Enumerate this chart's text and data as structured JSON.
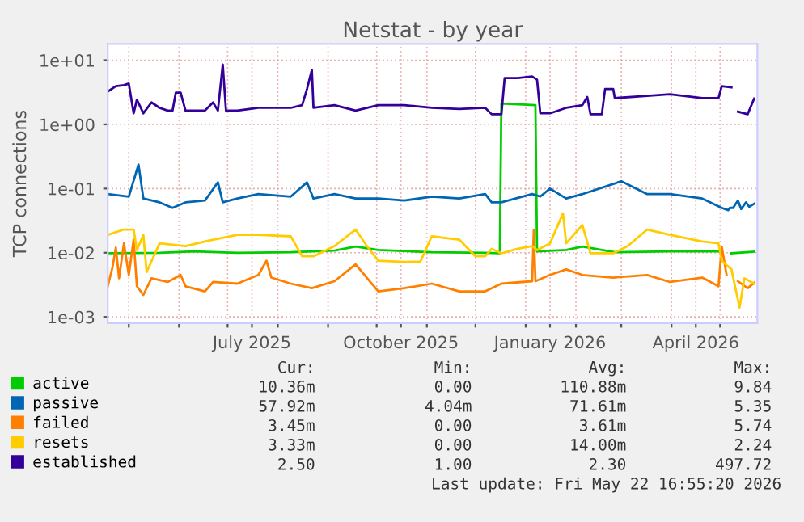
{
  "chart_data": {
    "type": "line",
    "title": "Netstat - by year",
    "ylabel": "TCP connections",
    "log": "y",
    "grid": true,
    "legend": "bottom",
    "marker": "none",
    "line_style": "solid",
    "xlim": [
      "2025-04-18",
      "2026-05-24"
    ],
    "xticks": [
      {
        "value": "2025-05-01",
        "label": null
      },
      {
        "value": "2025-06-01",
        "label": null
      },
      {
        "value": "2025-07-01",
        "label": null
      },
      {
        "value": "2025-07-16",
        "label": "July 2025"
      },
      {
        "value": "2025-08-01",
        "label": null
      },
      {
        "value": "2025-09-01",
        "label": null
      },
      {
        "value": "2025-10-01",
        "label": null
      },
      {
        "value": "2025-10-16",
        "label": "October 2025"
      },
      {
        "value": "2025-11-01",
        "label": null
      },
      {
        "value": "2025-12-01",
        "label": null
      },
      {
        "value": "2026-01-01",
        "label": null
      },
      {
        "value": "2026-01-16",
        "label": "January 2026"
      },
      {
        "value": "2026-02-01",
        "label": null
      },
      {
        "value": "2026-03-01",
        "label": null
      },
      {
        "value": "2026-04-01",
        "label": null
      },
      {
        "value": "2026-04-16",
        "label": "April 2026"
      },
      {
        "value": "2026-05-01",
        "label": null
      }
    ],
    "ylim": [
      0.0008,
      18
    ],
    "yticks": [
      {
        "value": 0.001,
        "label": "1e-03"
      },
      {
        "value": 0.01,
        "label": "1e-02"
      },
      {
        "value": 0.1,
        "label": "1e-01"
      },
      {
        "value": 1,
        "label": "1e+00"
      },
      {
        "value": 10,
        "label": "1e+01"
      }
    ],
    "series": [
      {
        "name": "active",
        "color": "#00cc00",
        "x": [
          "2025-04-18",
          "2025-05-20",
          "2025-06-10",
          "2025-07-07",
          "2025-08-09",
          "2025-09-05",
          "2025-09-18",
          "2025-10-02",
          "2025-11-04",
          "2025-12-07",
          "2025-12-16",
          "2025-12-17",
          "2026-01-07",
          "2026-01-08",
          "2026-01-26",
          "2026-02-05",
          "2026-02-25",
          "2026-03-31",
          "2026-04-30",
          "2026-05-02",
          "2026-05-08",
          "2026-05-22"
        ],
        "values": [
          0.0098,
          0.01,
          0.0105,
          0.01,
          0.0102,
          0.0108,
          0.0125,
          0.011,
          0.0102,
          0.01,
          0.0098,
          2.12,
          2.0,
          0.0105,
          0.011,
          0.0125,
          0.0102,
          0.0105,
          0.0105,
          null,
          0.0098,
          0.0104
        ]
      },
      {
        "name": "passive",
        "color": "#0066b3",
        "x": [
          "2025-04-18",
          "2025-05-01",
          "2025-05-07",
          "2025-05-10",
          "2025-05-20",
          "2025-05-28",
          "2025-06-05",
          "2025-06-17",
          "2025-06-25",
          "2025-06-28",
          "2025-07-07",
          "2025-07-20",
          "2025-08-09",
          "2025-08-19",
          "2025-08-23",
          "2025-09-05",
          "2025-09-18",
          "2025-10-02",
          "2025-10-18",
          "2025-11-04",
          "2025-11-21",
          "2025-12-07",
          "2025-12-11",
          "2025-12-17",
          "2026-01-05",
          "2026-01-10",
          "2026-01-16",
          "2026-01-26",
          "2026-02-05",
          "2026-03-01",
          "2026-03-17",
          "2026-03-31",
          "2026-04-20",
          "2026-05-02",
          "2026-05-06",
          "2026-05-07",
          "2026-05-09",
          "2026-05-12",
          "2026-05-14",
          "2026-05-17",
          "2026-05-19",
          "2026-05-22"
        ],
        "values": [
          0.082,
          0.075,
          0.237,
          0.07,
          0.061,
          0.05,
          0.061,
          0.065,
          0.125,
          0.061,
          0.07,
          0.082,
          0.075,
          0.125,
          0.07,
          0.082,
          0.07,
          0.07,
          0.065,
          0.075,
          0.07,
          0.082,
          0.061,
          0.061,
          0.082,
          0.075,
          0.1,
          0.07,
          0.082,
          0.13,
          0.082,
          0.082,
          0.07,
          0.05,
          0.046,
          0.05,
          0.05,
          0.065,
          0.048,
          0.061,
          0.052,
          0.058
        ]
      },
      {
        "name": "failed",
        "color": "#ff8000",
        "x": [
          "2025-04-18",
          "2025-04-21",
          "2025-04-23",
          "2025-04-25",
          "2025-04-28",
          "2025-05-01",
          "2025-05-04",
          "2025-05-06",
          "2025-05-10",
          "2025-05-15",
          "2025-05-25",
          "2025-06-02",
          "2025-06-05",
          "2025-06-17",
          "2025-06-22",
          "2025-07-07",
          "2025-07-20",
          "2025-07-25",
          "2025-07-28",
          "2025-08-09",
          "2025-08-22",
          "2025-09-05",
          "2025-09-18",
          "2025-10-02",
          "2025-10-18",
          "2025-11-04",
          "2025-11-21",
          "2025-12-07",
          "2025-12-17",
          "2026-01-05",
          "2026-01-06",
          "2026-01-07",
          "2026-01-16",
          "2026-01-26",
          "2026-02-05",
          "2026-02-24",
          "2026-03-17",
          "2026-03-31",
          "2026-04-20",
          "2026-04-30",
          "2026-05-02",
          "2026-05-05",
          "2026-05-08",
          "2026-05-12",
          "2026-05-18",
          "2026-05-22"
        ],
        "values": [
          0.003,
          0.006,
          0.012,
          0.004,
          0.014,
          0.0045,
          0.016,
          0.003,
          0.0022,
          0.004,
          0.0035,
          0.0045,
          0.003,
          0.0025,
          0.0035,
          0.0033,
          0.0045,
          0.0075,
          0.0041,
          0.0033,
          0.0028,
          0.0036,
          0.0066,
          0.0025,
          0.0028,
          0.0033,
          0.0025,
          0.0025,
          0.0033,
          0.0036,
          0.023,
          0.0036,
          0.0045,
          0.0055,
          0.0045,
          0.0041,
          0.0045,
          0.0035,
          0.0041,
          0.003,
          0.0125,
          0.0045,
          null,
          0.0036,
          0.0028,
          0.0034
        ]
      },
      {
        "name": "resets",
        "color": "#ffcc00",
        "x": [
          "2025-04-18",
          "2025-04-28",
          "2025-05-04",
          "2025-05-06",
          "2025-05-10",
          "2025-05-12",
          "2025-05-20",
          "2025-06-05",
          "2025-06-17",
          "2025-07-07",
          "2025-07-20",
          "2025-08-09",
          "2025-08-16",
          "2025-08-23",
          "2025-09-05",
          "2025-09-18",
          "2025-09-25",
          "2025-10-02",
          "2025-10-18",
          "2025-10-28",
          "2025-11-04",
          "2025-11-21",
          "2025-12-01",
          "2025-12-07",
          "2025-12-11",
          "2025-12-17",
          "2025-12-27",
          "2026-01-05",
          "2026-01-08",
          "2026-01-16",
          "2026-01-24",
          "2026-01-26",
          "2026-02-05",
          "2026-02-10",
          "2026-02-24",
          "2026-03-05",
          "2026-03-17",
          "2026-03-31",
          "2026-04-20",
          "2026-04-30",
          "2026-05-02",
          "2026-05-08",
          "2026-05-13",
          "2026-05-16",
          "2026-05-22"
        ],
        "values": [
          0.019,
          0.023,
          0.023,
          0.011,
          0.019,
          0.005,
          0.014,
          0.0127,
          0.015,
          0.019,
          0.019,
          0.018,
          0.0088,
          0.0088,
          0.0127,
          0.023,
          0.0127,
          0.0075,
          0.0072,
          0.0073,
          0.018,
          0.016,
          0.0088,
          0.0088,
          0.0115,
          0.0098,
          0.0115,
          0.0127,
          0.011,
          0.014,
          0.041,
          0.014,
          0.027,
          0.0098,
          0.0098,
          0.0127,
          0.023,
          0.019,
          0.015,
          0.014,
          0.0075,
          0.0055,
          0.0014,
          0.004,
          0.0033
        ]
      },
      {
        "name": "established",
        "color": "#330099",
        "x": [
          "2025-04-18",
          "2025-04-23",
          "2025-04-28",
          "2025-05-01",
          "2025-05-04",
          "2025-05-06",
          "2025-05-10",
          "2025-05-15",
          "2025-05-20",
          "2025-05-25",
          "2025-05-28",
          "2025-05-30",
          "2025-06-02",
          "2025-06-05",
          "2025-06-17",
          "2025-06-22",
          "2025-06-25",
          "2025-06-28",
          "2025-06-30",
          "2025-07-07",
          "2025-07-20",
          "2025-08-09",
          "2025-08-16",
          "2025-08-19",
          "2025-08-22",
          "2025-08-23",
          "2025-09-05",
          "2025-09-18",
          "2025-10-02",
          "2025-10-18",
          "2025-11-04",
          "2025-11-21",
          "2025-12-07",
          "2025-12-11",
          "2025-12-17",
          "2025-12-19",
          "2025-12-27",
          "2026-01-05",
          "2026-01-08",
          "2026-01-10",
          "2026-01-16",
          "2026-01-26",
          "2026-02-05",
          "2026-02-08",
          "2026-02-10",
          "2026-02-17",
          "2026-02-19",
          "2026-02-24",
          "2026-02-25",
          "2026-03-17",
          "2026-03-31",
          "2026-04-20",
          "2026-04-30",
          "2026-05-02",
          "2026-05-08",
          "2026-05-11",
          "2026-05-12",
          "2026-05-18",
          "2026-05-22"
        ],
        "values": [
          3.24,
          3.94,
          4.09,
          4.33,
          1.49,
          2.43,
          1.49,
          2.2,
          1.81,
          1.64,
          1.64,
          3.12,
          3.12,
          1.64,
          1.64,
          2.2,
          1.64,
          8.55,
          1.64,
          1.64,
          1.81,
          1.81,
          2.0,
          3.57,
          7.04,
          1.81,
          2.0,
          1.64,
          2.0,
          2.0,
          1.81,
          1.74,
          1.81,
          1.44,
          1.44,
          5.26,
          5.26,
          5.58,
          4.97,
          1.49,
          1.49,
          1.81,
          2.0,
          2.67,
          1.44,
          1.44,
          3.57,
          3.57,
          2.57,
          2.78,
          2.95,
          2.57,
          2.57,
          3.94,
          3.78,
          null,
          1.58,
          1.44,
          2.52
        ]
      }
    ],
    "annotations": [
      "Cur:",
      "Min:",
      "Avg:",
      "Max:",
      "10.36m",
      "0.00",
      "110.88m",
      "9.84",
      "57.92m",
      "4.04m",
      "71.61m",
      "5.35",
      "3.45m",
      "0.00",
      "3.61m",
      "5.74",
      "3.33m",
      "0.00",
      "14.00m",
      "2.24",
      "2.50",
      "1.00",
      "2.30",
      "497.72",
      "Last update: Fri May 22 16:55:20 2026"
    ]
  }
}
